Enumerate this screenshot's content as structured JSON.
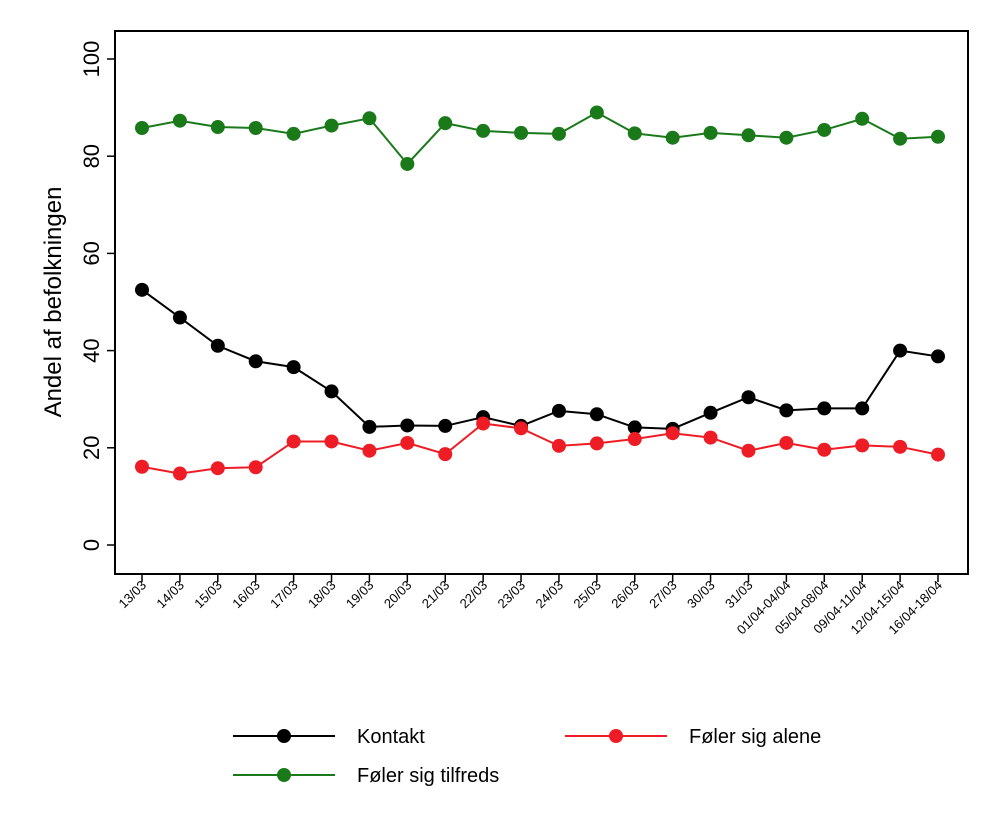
{
  "chart_data": {
    "type": "line",
    "title": "",
    "xlabel": "",
    "ylabel": "Andel af befolkningen",
    "ylim": [
      0,
      100
    ],
    "yticks": [
      0,
      20,
      40,
      60,
      80,
      100
    ],
    "grid": false,
    "legend_position": "bottom",
    "categories": [
      "13/03",
      "14/03",
      "15/03",
      "16/03",
      "17/03",
      "18/03",
      "19/03",
      "20/03",
      "21/03",
      "22/03",
      "23/03",
      "24/03",
      "25/03",
      "26/03",
      "27/03",
      "30/03",
      "31/03",
      "01/04-04/04",
      "05/04-08/04",
      "09/04-11/04",
      "12/04-15/04",
      "16/04-18/04"
    ],
    "series": [
      {
        "name": "Kontakt",
        "color": "#000000",
        "values": [
          52.5,
          46.8,
          41.0,
          37.8,
          36.6,
          31.6,
          24.3,
          24.6,
          24.5,
          26.3,
          24.5,
          27.6,
          26.9,
          24.2,
          23.9,
          27.2,
          30.4,
          27.7,
          28.1,
          28.1,
          40.0,
          38.8
        ]
      },
      {
        "name": "Føler sig alene",
        "color": "#ee1c25",
        "values": [
          16.1,
          14.7,
          15.8,
          16.0,
          21.3,
          21.3,
          19.4,
          21.0,
          18.7,
          25.0,
          24.0,
          20.4,
          20.9,
          21.8,
          23.0,
          22.1,
          19.4,
          21.0,
          19.6,
          20.5,
          20.2,
          18.6
        ]
      },
      {
        "name": "Føler sig tilfreds",
        "color": "#1a7a1a",
        "values": [
          85.8,
          87.3,
          86.0,
          85.8,
          84.6,
          86.3,
          87.8,
          78.4,
          86.8,
          85.2,
          84.8,
          84.6,
          89.0,
          84.7,
          83.8,
          84.8,
          84.3,
          83.8,
          85.4,
          87.7,
          83.6,
          84.0
        ]
      }
    ]
  }
}
